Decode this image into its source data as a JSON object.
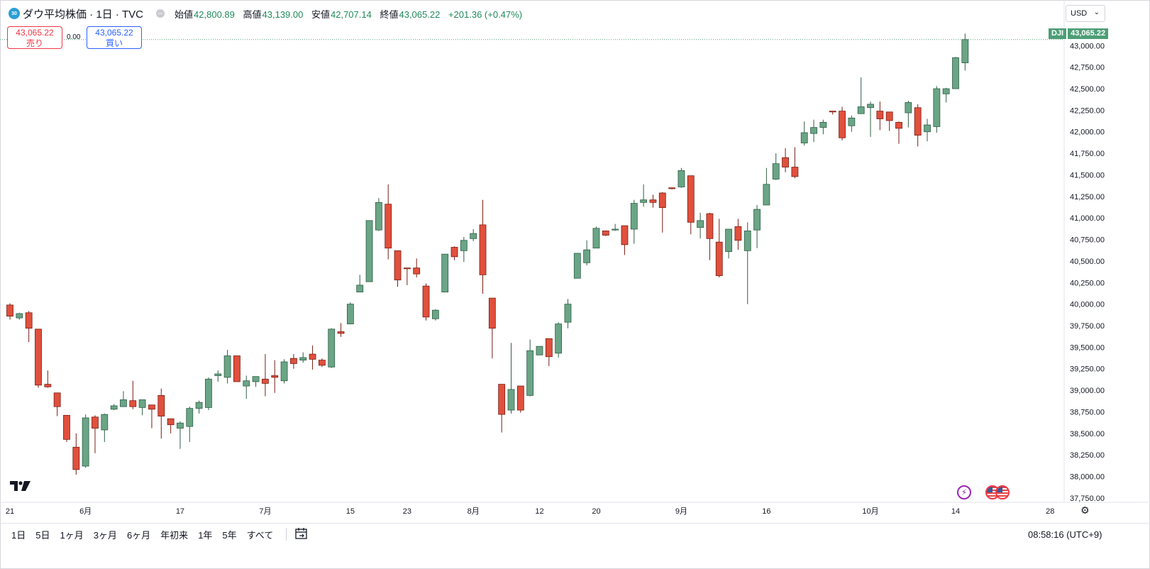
{
  "legend": {
    "badge": "30",
    "title": "ダウ平均株価 · 1日 · TVC",
    "open_label": "始値",
    "open": "42,800.89",
    "high_label": "高値",
    "high": "43,139.00",
    "low_label": "安値",
    "low": "42,707.14",
    "close_label": "終値",
    "close": "43,065.22",
    "change": "+201.36 (+0.47%)"
  },
  "trade": {
    "sell_price": "43,065.22",
    "sell_label": "売り",
    "buy_price": "43,065.22",
    "buy_label": "買い",
    "spread": "0.00"
  },
  "currency": "USD",
  "last_price_tag": {
    "symbol": "DJI",
    "value": "43,065.22"
  },
  "time_ranges": [
    "1日",
    "5日",
    "1ヶ月",
    "3ヶ月",
    "6ヶ月",
    "年初来",
    "1年",
    "5年",
    "すべて"
  ],
  "clock": "08:58:16 (UTC+9)",
  "icons": {
    "logo": "tradingview-logo-icon",
    "event": "lightning-event-icon",
    "flag": "us-flag-icon",
    "settings": "gear-icon",
    "goto": "calendar-goto-icon"
  },
  "colors": {
    "up": "#6aa586",
    "down": "#e0503d",
    "up_border": "#2f5e46",
    "down_border": "#7a1d12"
  },
  "chart_data": {
    "type": "candlestick",
    "ylim": [
      37700,
      43200
    ],
    "y_ticks": [
      "37,750.00",
      "38,000.00",
      "38,250.00",
      "38,500.00",
      "38,750.00",
      "39,000.00",
      "39,250.00",
      "39,500.00",
      "39,750.00",
      "40,000.00",
      "40,250.00",
      "40,500.00",
      "40,750.00",
      "41,000.00",
      "41,250.00",
      "41,500.00",
      "41,750.00",
      "42,000.00",
      "42,250.00",
      "42,500.00",
      "42,750.00",
      "43,000.00"
    ],
    "x_ticks": [
      {
        "label": "21",
        "index": 0
      },
      {
        "label": "6月",
        "index": 8
      },
      {
        "label": "17",
        "index": 18
      },
      {
        "label": "7月",
        "index": 27
      },
      {
        "label": "15",
        "index": 36
      },
      {
        "label": "23",
        "index": 42
      },
      {
        "label": "8月",
        "index": 49
      },
      {
        "label": "12",
        "index": 56
      },
      {
        "label": "20",
        "index": 62
      },
      {
        "label": "9月",
        "index": 71
      },
      {
        "label": "16",
        "index": 80
      },
      {
        "label": "10月",
        "index": 91
      },
      {
        "label": "14",
        "index": 100
      },
      {
        "label": "28",
        "index": 110
      }
    ],
    "candles": [
      [
        39990,
        40010,
        39820,
        39860
      ],
      [
        39840,
        39900,
        39820,
        39890
      ],
      [
        39900,
        39920,
        39560,
        39720
      ],
      [
        39710,
        39710,
        39030,
        39060
      ],
      [
        39070,
        39230,
        39030,
        39040
      ],
      [
        38970,
        38970,
        38700,
        38810
      ],
      [
        38710,
        38710,
        38400,
        38430
      ],
      [
        38340,
        38500,
        38020,
        38080
      ],
      [
        38120,
        38720,
        38100,
        38680
      ],
      [
        38690,
        38710,
        38270,
        38560
      ],
      [
        38540,
        38730,
        38400,
        38720
      ],
      [
        38780,
        38840,
        38770,
        38820
      ],
      [
        38810,
        38990,
        38820,
        38890
      ],
      [
        38880,
        39110,
        38780,
        38810
      ],
      [
        38800,
        38890,
        38710,
        38890
      ],
      [
        38830,
        38830,
        38560,
        38780
      ],
      [
        38940,
        39020,
        38440,
        38700
      ],
      [
        38670,
        38670,
        38500,
        38600
      ],
      [
        38560,
        38640,
        38320,
        38620
      ],
      [
        38580,
        38810,
        38400,
        38790
      ],
      [
        38790,
        38880,
        38730,
        38860
      ],
      [
        38800,
        39150,
        38770,
        39130
      ],
      [
        39170,
        39230,
        39100,
        39190
      ],
      [
        39150,
        39470,
        39080,
        39400
      ],
      [
        39400,
        39390,
        39110,
        39100
      ],
      [
        39050,
        39170,
        38900,
        39110
      ],
      [
        39100,
        39160,
        39040,
        39160
      ],
      [
        39130,
        39420,
        38930,
        39080
      ],
      [
        39170,
        39350,
        38970,
        39150
      ],
      [
        39110,
        39360,
        39080,
        39330
      ],
      [
        39370,
        39420,
        39250,
        39310
      ],
      [
        39350,
        39440,
        39320,
        39380
      ],
      [
        39420,
        39520,
        39240,
        39360
      ],
      [
        39350,
        39370,
        39270,
        39290
      ],
      [
        39270,
        39720,
        39260,
        39710
      ],
      [
        39680,
        39780,
        39620,
        39660
      ],
      [
        39770,
        40020,
        39770,
        40000
      ],
      [
        40140,
        40340,
        40140,
        40220
      ],
      [
        40260,
        40960,
        40260,
        40970
      ],
      [
        40860,
        41230,
        40850,
        41180
      ],
      [
        41160,
        41390,
        40520,
        40650
      ],
      [
        40620,
        40620,
        40200,
        40280
      ],
      [
        40420,
        40420,
        40220,
        40410
      ],
      [
        40420,
        40530,
        40310,
        40350
      ],
      [
        40210,
        40240,
        39810,
        39850
      ],
      [
        39830,
        39940,
        39810,
        39930
      ],
      [
        40140,
        40580,
        40140,
        40580
      ],
      [
        40660,
        40670,
        40510,
        40550
      ],
      [
        40620,
        40780,
        40490,
        40740
      ],
      [
        40760,
        40870,
        40730,
        40820
      ],
      [
        40920,
        41210,
        40120,
        40340
      ],
      [
        40070,
        40060,
        39370,
        39720
      ],
      [
        39070,
        39070,
        38510,
        38720
      ],
      [
        38770,
        39550,
        38730,
        39010
      ],
      [
        39050,
        39050,
        38740,
        38770
      ],
      [
        38940,
        39590,
        38930,
        39460
      ],
      [
        39410,
        39510,
        39410,
        39510
      ],
      [
        39600,
        39600,
        39280,
        39390
      ],
      [
        39430,
        39790,
        39380,
        39770
      ],
      [
        39790,
        40060,
        39720,
        40000
      ],
      [
        40300,
        40590,
        40300,
        40590
      ],
      [
        40480,
        40740,
        40450,
        40630
      ],
      [
        40650,
        40900,
        40650,
        40880
      ],
      [
        40850,
        40850,
        40790,
        40800
      ],
      [
        40860,
        40930,
        40850,
        40870
      ],
      [
        40910,
        40910,
        40570,
        40690
      ],
      [
        40870,
        41210,
        40700,
        41170
      ],
      [
        41180,
        41390,
        41130,
        41210
      ],
      [
        41210,
        41270,
        41120,
        41180
      ],
      [
        41290,
        41300,
        40830,
        41120
      ],
      [
        41350,
        41350,
        41330,
        41340
      ],
      [
        41360,
        41580,
        41350,
        41550
      ],
      [
        41490,
        41490,
        40810,
        40950
      ],
      [
        40890,
        41060,
        40760,
        40970
      ],
      [
        41050,
        41060,
        40510,
        40760
      ],
      [
        40720,
        40990,
        40310,
        40330
      ],
      [
        40610,
        40870,
        40530,
        40870
      ],
      [
        40900,
        40990,
        40630,
        40740
      ],
      [
        40620,
        40950,
        40000,
        40850
      ],
      [
        40860,
        41150,
        40650,
        41100
      ],
      [
        41150,
        41580,
        41150,
        41390
      ],
      [
        41450,
        41750,
        41440,
        41630
      ],
      [
        41700,
        41810,
        41530,
        41590
      ],
      [
        41590,
        41820,
        41460,
        41480
      ],
      [
        41870,
        42120,
        41840,
        41990
      ],
      [
        41980,
        42140,
        41880,
        42050
      ],
      [
        42050,
        42140,
        41970,
        42110
      ],
      [
        42240,
        42240,
        42200,
        42230
      ],
      [
        42240,
        42290,
        41900,
        41930
      ],
      [
        42070,
        42190,
        42000,
        42160
      ],
      [
        42210,
        42630,
        42220,
        42290
      ],
      [
        42280,
        42350,
        41940,
        42320
      ],
      [
        42240,
        42350,
        42020,
        42150
      ],
      [
        42230,
        42230,
        42010,
        42130
      ],
      [
        42110,
        42120,
        41860,
        42040
      ],
      [
        42220,
        42360,
        42050,
        42340
      ],
      [
        42280,
        42320,
        41830,
        41960
      ],
      [
        42000,
        42150,
        41890,
        42080
      ],
      [
        42060,
        42530,
        41990,
        42500
      ],
      [
        42440,
        42510,
        42340,
        42500
      ],
      [
        42500,
        42870,
        42500,
        42860
      ],
      [
        42800,
        43140,
        42710,
        43070
      ]
    ]
  }
}
